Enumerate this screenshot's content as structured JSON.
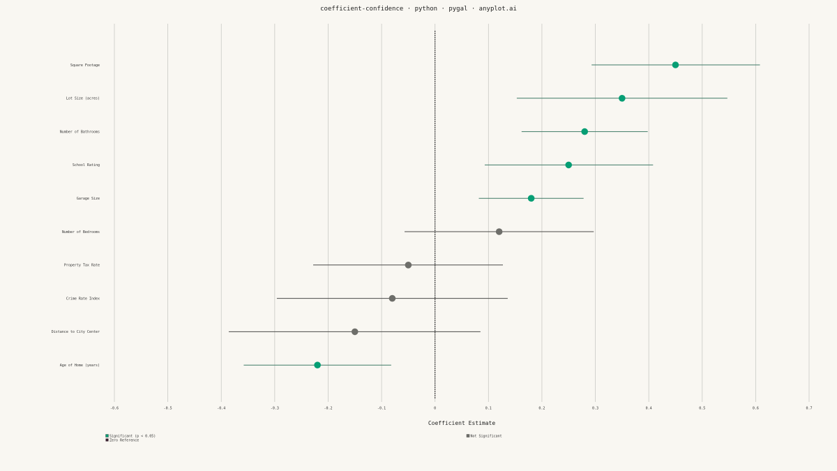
{
  "chart_data": {
    "type": "scatter",
    "title": "coefficient-confidence · python · pygal · anyplot.ai",
    "xlabel": "Coefficient Estimate",
    "ylabel": "",
    "xlim": [
      -0.6,
      0.7
    ],
    "xticks": [
      "-0.6",
      "-0.5",
      "-0.4",
      "-0.3",
      "-0.2",
      "-0.1",
      "0",
      "0.1",
      "0.2",
      "0.3",
      "0.4",
      "0.5",
      "0.6",
      "0.7"
    ],
    "grid": true,
    "legend_position": "bottom",
    "reference_line": 0,
    "categories": [
      "Square Footage",
      "Lot Size (acres)",
      "Number of Bathrooms",
      "School Rating",
      "Garage Size",
      "Number of Bedrooms",
      "Property Tax Rate",
      "Crime Rate Index",
      "Distance to City Center",
      "Age of Home (years)"
    ],
    "estimates": [
      0.45,
      0.35,
      0.28,
      0.25,
      0.18,
      0.12,
      -0.05,
      -0.08,
      -0.15,
      -0.22
    ],
    "ci_low": [
      0.293,
      0.153,
      0.162,
      0.093,
      0.082,
      -0.057,
      -0.228,
      -0.296,
      -0.386,
      -0.358
    ],
    "ci_high": [
      0.608,
      0.547,
      0.398,
      0.408,
      0.278,
      0.297,
      0.127,
      0.136,
      0.085,
      -0.082
    ],
    "significant": [
      true,
      true,
      true,
      true,
      true,
      false,
      false,
      false,
      false,
      true
    ],
    "series": [
      {
        "name": "Significant (p < 0.05)",
        "color": "#069e74"
      },
      {
        "name": "Not Significant",
        "color": "#6e6e6a"
      },
      {
        "name": "Zero Reference",
        "color": "#444444"
      }
    ],
    "colors": {
      "significant": "#069e74",
      "not_significant": "#6e6e6a",
      "ci_significant": "#3f7a66",
      "ci_not_significant": "#4a4a48",
      "grid": "#c9c9c4",
      "zero_line": "#333333",
      "zero_legend": "#3a2230"
    }
  }
}
